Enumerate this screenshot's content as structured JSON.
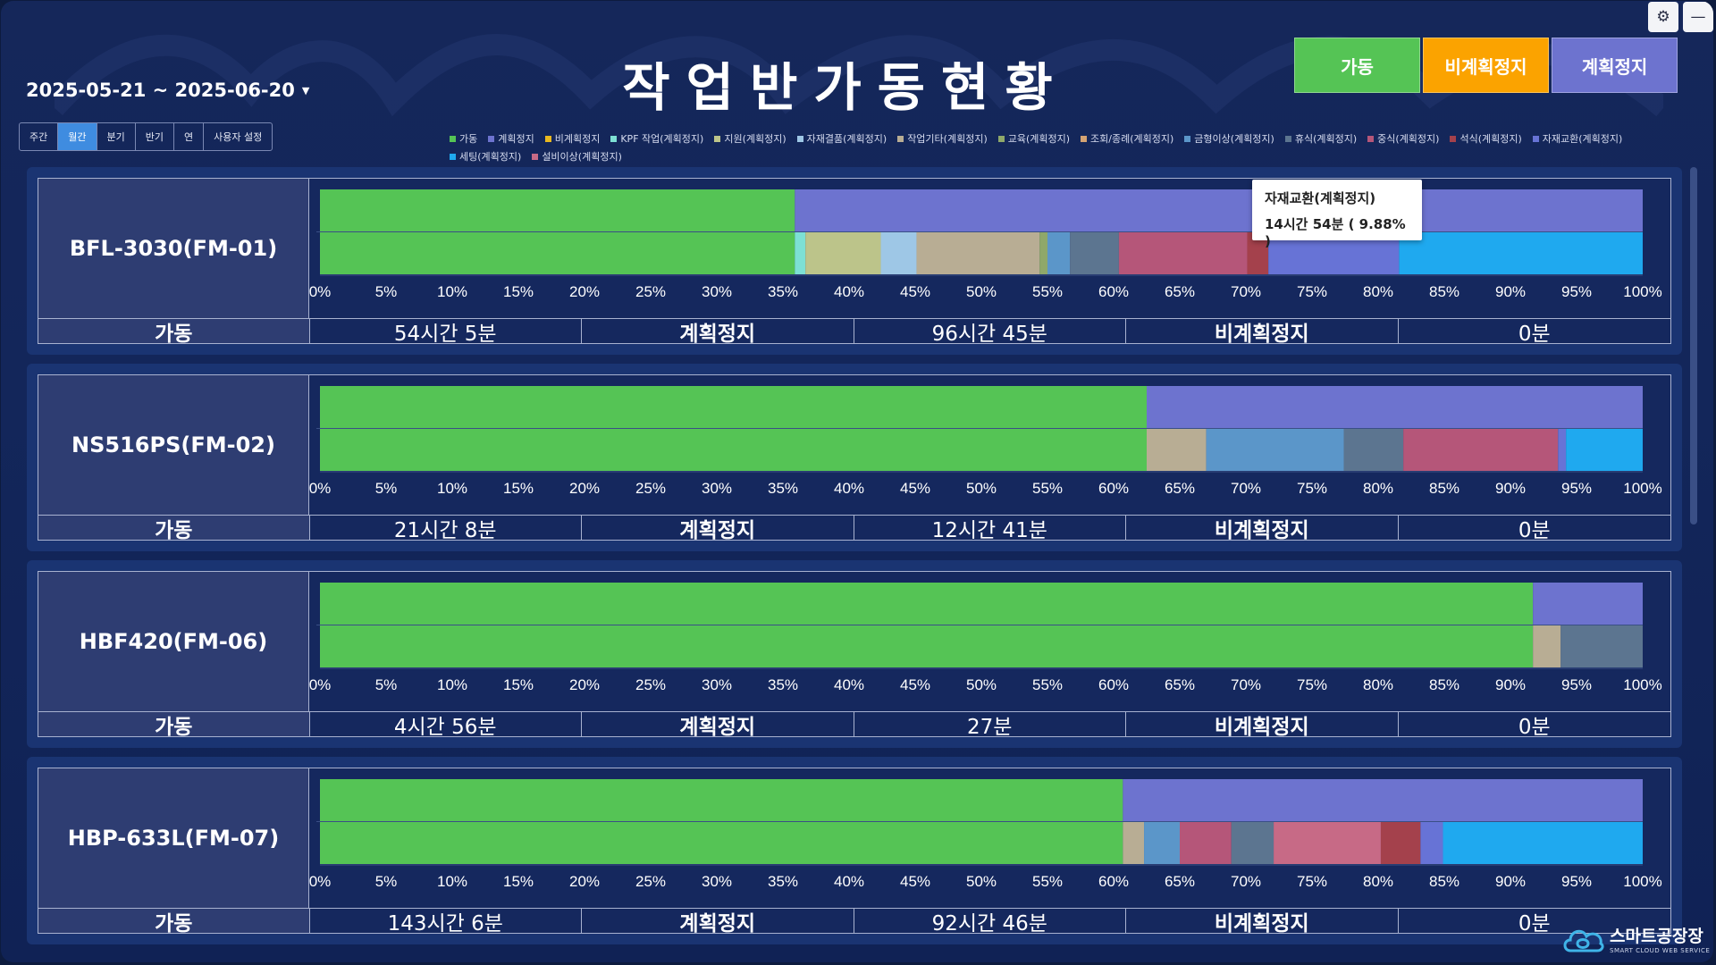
{
  "title": "작업반가동현황",
  "date_range": "2025-05-21 ~ 2025-06-20",
  "period_buttons": [
    {
      "label": "주간",
      "active": false
    },
    {
      "label": "월간",
      "active": true
    },
    {
      "label": "분기",
      "active": false
    },
    {
      "label": "반기",
      "active": false
    },
    {
      "label": "연",
      "active": false
    },
    {
      "label": "사용자 설정",
      "active": false
    }
  ],
  "status_buttons": [
    {
      "label": "가동",
      "color": "#55c455"
    },
    {
      "label": "비계획정지",
      "color": "#fba300"
    },
    {
      "label": "계획정지",
      "color": "#6d73cf"
    }
  ],
  "corner_icons": [
    "gear-icon",
    "minimize-icon"
  ],
  "legend": [
    {
      "label": "가동",
      "color": "#55c455"
    },
    {
      "label": "계획정지",
      "color": "#6d73cf"
    },
    {
      "label": "비계획정지",
      "color": "#e9b820"
    },
    {
      "label": "KPF 작업(계획정지)",
      "color": "#7de0d4"
    },
    {
      "label": "지원(계획정지)",
      "color": "#bcc48a"
    },
    {
      "label": "자재결품(계획정지)",
      "color": "#9ec7e6"
    },
    {
      "label": "작업기타(계획정지)",
      "color": "#b8ad94"
    },
    {
      "label": "교육(계획정지)",
      "color": "#8fa86a"
    },
    {
      "label": "조회/종례(계획정지)",
      "color": "#d4a373"
    },
    {
      "label": "금형이상(계획정지)",
      "color": "#5b96c9"
    },
    {
      "label": "휴식(계획정지)",
      "color": "#5c7590"
    },
    {
      "label": "중식(계획정지)",
      "color": "#b55679"
    },
    {
      "label": "석식(계획정지)",
      "color": "#a4414c"
    },
    {
      "label": "자재교환(계획정지)",
      "color": "#6773d6"
    },
    {
      "label": "세팅(계획정지)",
      "color": "#1fa9ef"
    },
    {
      "label": "설비이상(계획정지)",
      "color": "#c76a86"
    }
  ],
  "summary_labels": {
    "run": "가동",
    "planned": "계획정지",
    "unplanned": "비계획정지"
  },
  "chart_data": {
    "type": "bar",
    "orientation": "horizontal-stacked",
    "x_unit": "%",
    "xlim": [
      0,
      100
    ],
    "x_ticks": [
      "0%",
      "5%",
      "10%",
      "15%",
      "20%",
      "25%",
      "30%",
      "35%",
      "40%",
      "45%",
      "50%",
      "55%",
      "60%",
      "65%",
      "70%",
      "75%",
      "80%",
      "85%",
      "90%",
      "95%",
      "100%"
    ],
    "machines": [
      {
        "name": "BFL-3030(FM-01)",
        "run_time": "54시간 5분",
        "planned_time": "96시간 45분",
        "unplanned_time": "0분",
        "top_bar": [
          {
            "category": "가동",
            "value": 35.9
          },
          {
            "category": "계획정지",
            "value": 64.1
          }
        ],
        "bottom_bar": [
          {
            "category": "가동",
            "value": 35.9
          },
          {
            "category": "KPF 작업(계획정지)",
            "value": 0.8
          },
          {
            "category": "지원(계획정지)",
            "value": 5.7
          },
          {
            "category": "자재결품(계획정지)",
            "value": 2.7
          },
          {
            "category": "작업기타(계획정지)",
            "value": 9.3
          },
          {
            "category": "교육(계획정지)",
            "value": 0.6
          },
          {
            "category": "금형이상(계획정지)",
            "value": 1.7
          },
          {
            "category": "휴식(계획정지)",
            "value": 3.7
          },
          {
            "category": "중식(계획정지)",
            "value": 9.7
          },
          {
            "category": "석식(계획정지)",
            "value": 1.6
          },
          {
            "category": "자재교환(계획정지)",
            "value": 9.88
          },
          {
            "category": "세팅(계획정지)",
            "value": 18.5
          }
        ]
      },
      {
        "name": "NS516PS(FM-02)",
        "run_time": "21시간 8분",
        "planned_time": "12시간 41분",
        "unplanned_time": "0분",
        "top_bar": [
          {
            "category": "가동",
            "value": 62.5
          },
          {
            "category": "계획정지",
            "value": 37.5
          }
        ],
        "bottom_bar": [
          {
            "category": "가동",
            "value": 62.5
          },
          {
            "category": "작업기타(계획정지)",
            "value": 4.5
          },
          {
            "category": "금형이상(계획정지)",
            "value": 10.4
          },
          {
            "category": "휴식(계획정지)",
            "value": 4.5
          },
          {
            "category": "중식(계획정지)",
            "value": 11.7
          },
          {
            "category": "자재교환(계획정지)",
            "value": 0.6
          },
          {
            "category": "세팅(계획정지)",
            "value": 5.8
          }
        ]
      },
      {
        "name": "HBF420(FM-06)",
        "run_time": "4시간 56분",
        "planned_time": "27분",
        "unplanned_time": "0분",
        "top_bar": [
          {
            "category": "가동",
            "value": 91.7
          },
          {
            "category": "계획정지",
            "value": 8.3
          }
        ],
        "bottom_bar": [
          {
            "category": "가동",
            "value": 91.7
          },
          {
            "category": "작업기타(계획정지)",
            "value": 2.1
          },
          {
            "category": "휴식(계획정지)",
            "value": 6.2
          }
        ]
      },
      {
        "name": "HBP-633L(FM-07)",
        "run_time": "143시간 6분",
        "planned_time": "92시간 46분",
        "unplanned_time": "0분",
        "top_bar": [
          {
            "category": "가동",
            "value": 60.7
          },
          {
            "category": "계획정지",
            "value": 39.3
          }
        ],
        "bottom_bar": [
          {
            "category": "가동",
            "value": 60.7
          },
          {
            "category": "작업기타(계획정지)",
            "value": 1.6
          },
          {
            "category": "금형이상(계획정지)",
            "value": 2.7
          },
          {
            "category": "중식(계획정지)",
            "value": 3.9
          },
          {
            "category": "휴식(계획정지)",
            "value": 3.2
          },
          {
            "category": "설비이상(계획정지)",
            "value": 8.1
          },
          {
            "category": "석식(계획정지)",
            "value": 3.0
          },
          {
            "category": "자재교환(계획정지)",
            "value": 1.7
          },
          {
            "category": "세팅(계획정지)",
            "value": 15.1
          }
        ]
      }
    ]
  },
  "tooltip": {
    "title": "자재교환(계획정지)",
    "value": "14시간 54분 ( 9.88% )"
  },
  "logo": {
    "main": "스마트공장장",
    "sub": "SMART CLOUD WEB SERVICE"
  }
}
